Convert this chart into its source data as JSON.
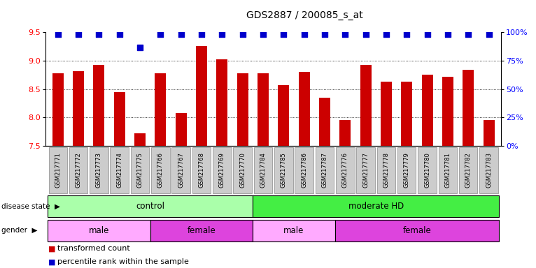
{
  "title": "GDS2887 / 200085_s_at",
  "samples": [
    "GSM217771",
    "GSM217772",
    "GSM217773",
    "GSM217774",
    "GSM217775",
    "GSM217766",
    "GSM217767",
    "GSM217768",
    "GSM217769",
    "GSM217770",
    "GSM217784",
    "GSM217785",
    "GSM217786",
    "GSM217787",
    "GSM217776",
    "GSM217777",
    "GSM217778",
    "GSM217779",
    "GSM217780",
    "GSM217781",
    "GSM217782",
    "GSM217783"
  ],
  "bar_values": [
    8.78,
    8.81,
    8.92,
    8.45,
    7.72,
    8.78,
    8.08,
    9.25,
    9.02,
    8.78,
    8.78,
    8.57,
    8.8,
    8.35,
    7.96,
    8.92,
    8.63,
    8.63,
    8.75,
    8.72,
    8.84,
    7.96
  ],
  "percentile_values": [
    100,
    100,
    100,
    100,
    88,
    100,
    100,
    100,
    100,
    100,
    100,
    100,
    100,
    100,
    100,
    100,
    100,
    100,
    100,
    100,
    100,
    100
  ],
  "bar_color": "#cc0000",
  "dot_color": "#0000cc",
  "ylim_left": [
    7.5,
    9.5
  ],
  "ylim_right": [
    0,
    100
  ],
  "yticks_left": [
    7.5,
    8.0,
    8.5,
    9.0,
    9.5
  ],
  "yticks_right": [
    0,
    25,
    50,
    75,
    100
  ],
  "ytick_labels_right": [
    "0%",
    "25%",
    "50%",
    "75%",
    "100%"
  ],
  "grid_values": [
    8.0,
    8.5,
    9.0
  ],
  "disease_state_groups": [
    {
      "label": "control",
      "start": 0,
      "end": 10,
      "color": "#aaffaa"
    },
    {
      "label": "moderate HD",
      "start": 10,
      "end": 22,
      "color": "#44ee44"
    }
  ],
  "gender_groups": [
    {
      "label": "male",
      "start": 0,
      "end": 5,
      "color": "#ffaaff"
    },
    {
      "label": "female",
      "start": 5,
      "end": 10,
      "color": "#dd44dd"
    },
    {
      "label": "male",
      "start": 10,
      "end": 14,
      "color": "#ffaaff"
    },
    {
      "label": "female",
      "start": 14,
      "end": 22,
      "color": "#dd44dd"
    }
  ],
  "disease_label": "disease state",
  "gender_label": "gender",
  "legend_bar_label": "transformed count",
  "legend_dot_label": "percentile rank within the sample",
  "n_samples": 22,
  "tick_bg_color": "#cccccc"
}
